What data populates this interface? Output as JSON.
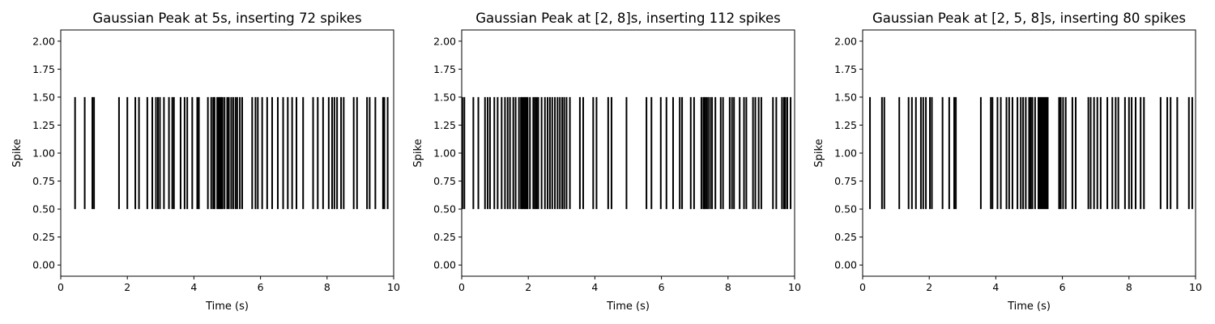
{
  "chart_data": [
    {
      "type": "eventplot",
      "title": "Gaussian Peak at 5s, inserting 72 spikes",
      "xlabel": "Time (s)",
      "ylabel": "Spike",
      "xlim": [
        0,
        10
      ],
      "ylim": [
        -0.1,
        2.1
      ],
      "xticks": [
        0,
        2,
        4,
        6,
        8,
        10
      ],
      "xtick_labels": [
        "0",
        "2",
        "4",
        "6",
        "8",
        "10"
      ],
      "yticks": [
        0,
        0.25,
        0.5,
        0.75,
        1.0,
        1.25,
        1.5,
        1.75,
        2.0
      ],
      "ytick_labels": [
        "0.00",
        "0.25",
        "0.50",
        "0.75",
        "1.00",
        "1.25",
        "1.50",
        "1.75",
        "2.00"
      ],
      "line_range": [
        0.5,
        1.5
      ],
      "spikes": [
        0.43,
        0.72,
        0.95,
        1.0,
        1.75,
        2.0,
        2.24,
        2.35,
        2.6,
        2.75,
        2.86,
        2.92,
        2.98,
        3.1,
        3.25,
        3.35,
        3.4,
        3.6,
        3.72,
        3.8,
        3.95,
        4.1,
        4.15,
        4.42,
        4.52,
        4.58,
        4.62,
        4.7,
        4.74,
        4.78,
        4.82,
        4.86,
        4.92,
        5.0,
        5.05,
        5.12,
        5.18,
        5.25,
        5.3,
        5.38,
        5.45,
        5.75,
        5.85,
        5.92,
        6.05,
        6.2,
        6.35,
        6.52,
        6.68,
        6.82,
        6.95,
        7.08,
        7.28,
        7.58,
        7.72,
        7.88,
        8.05,
        8.15,
        8.22,
        8.3,
        8.42,
        8.5,
        8.8,
        8.9,
        9.2,
        9.28,
        9.45,
        9.68,
        9.72,
        9.82
      ]
    },
    {
      "type": "eventplot",
      "title": "Gaussian Peak at [2, 8]s, inserting 112 spikes",
      "xlabel": "Time (s)",
      "ylabel": "Spike",
      "xlim": [
        0,
        10
      ],
      "ylim": [
        -0.1,
        2.1
      ],
      "xticks": [
        0,
        2,
        4,
        6,
        8,
        10
      ],
      "xtick_labels": [
        "0",
        "2",
        "4",
        "6",
        "8",
        "10"
      ],
      "yticks": [
        0,
        0.25,
        0.5,
        0.75,
        1.0,
        1.25,
        1.5,
        1.75,
        2.0
      ],
      "ytick_labels": [
        "0.00",
        "0.25",
        "0.50",
        "0.75",
        "1.00",
        "1.25",
        "1.50",
        "1.75",
        "2.00"
      ],
      "line_range": [
        0.5,
        1.5
      ],
      "spikes": [
        0.02,
        0.08,
        0.35,
        0.5,
        0.7,
        0.78,
        0.85,
        0.98,
        1.08,
        1.2,
        1.3,
        1.38,
        1.45,
        1.55,
        1.62,
        1.72,
        1.78,
        1.82,
        1.86,
        1.9,
        1.94,
        1.98,
        2.05,
        2.15,
        2.2,
        2.25,
        2.3,
        2.4,
        2.5,
        2.58,
        2.65,
        2.72,
        2.8,
        2.88,
        2.95,
        3.02,
        3.08,
        3.15,
        3.25,
        3.55,
        3.65,
        3.95,
        4.05,
        4.4,
        4.5,
        4.95,
        5.55,
        5.7,
        5.98,
        6.15,
        6.35,
        6.55,
        6.62,
        6.88,
        6.98,
        7.2,
        7.26,
        7.3,
        7.35,
        7.4,
        7.46,
        7.52,
        7.62,
        7.78,
        7.85,
        8.05,
        8.12,
        8.18,
        8.35,
        8.48,
        8.55,
        8.75,
        8.82,
        8.92,
        9.0,
        9.35,
        9.45,
        9.62,
        9.68,
        9.72,
        9.78,
        9.88
      ]
    },
    {
      "type": "eventplot",
      "title": "Gaussian Peak at [2, 5, 8]s, inserting 80 spikes",
      "xlabel": "Time (s)",
      "ylabel": "Spike",
      "xlim": [
        0,
        10
      ],
      "ylim": [
        -0.1,
        2.1
      ],
      "xticks": [
        0,
        2,
        4,
        6,
        8,
        10
      ],
      "xtick_labels": [
        "0",
        "2",
        "4",
        "6",
        "8",
        "10"
      ],
      "yticks": [
        0,
        0.25,
        0.5,
        0.75,
        1.0,
        1.25,
        1.5,
        1.75,
        2.0
      ],
      "ytick_labels": [
        "0.00",
        "0.25",
        "0.50",
        "0.75",
        "1.00",
        "1.25",
        "1.50",
        "1.75",
        "2.00"
      ],
      "line_range": [
        0.5,
        1.5
      ],
      "spikes": [
        0.22,
        0.58,
        0.65,
        1.1,
        1.38,
        1.48,
        1.6,
        1.75,
        1.82,
        1.9,
        2.02,
        2.08,
        2.4,
        2.6,
        2.75,
        2.8,
        3.55,
        3.85,
        3.9,
        4.05,
        4.15,
        4.32,
        4.4,
        4.5,
        4.65,
        4.75,
        4.82,
        4.9,
        5.0,
        5.05,
        5.1,
        5.18,
        5.28,
        5.32,
        5.36,
        5.4,
        5.44,
        5.48,
        5.52,
        5.56,
        5.9,
        5.95,
        6.02,
        6.1,
        6.3,
        6.4,
        6.78,
        6.85,
        6.95,
        7.05,
        7.15,
        7.35,
        7.5,
        7.6,
        7.68,
        7.88,
        8.0,
        8.08,
        8.2,
        8.35,
        8.45,
        8.95,
        9.15,
        9.25,
        9.45,
        9.8,
        9.9
      ]
    }
  ]
}
